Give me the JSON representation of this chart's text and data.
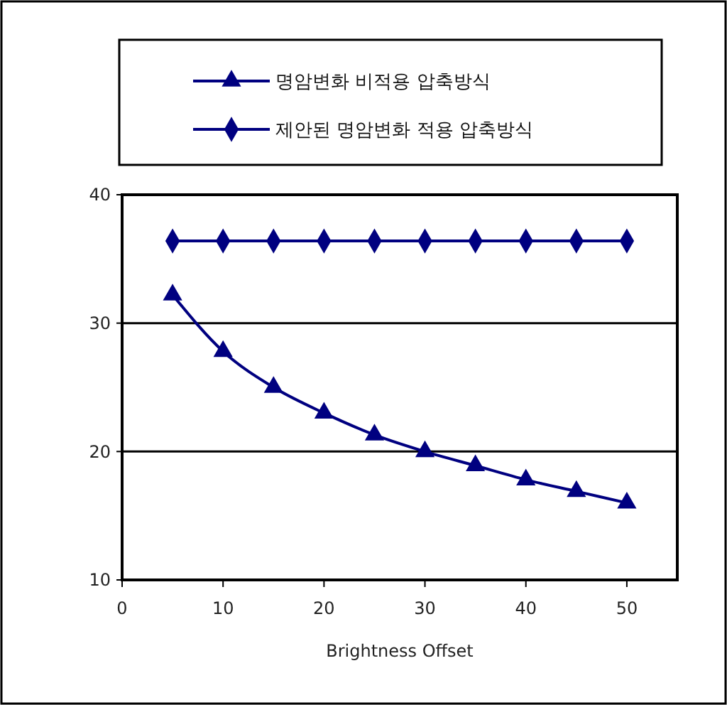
{
  "chart_data": {
    "type": "line",
    "xlabel": "Brightness Offset",
    "x": [
      5,
      10,
      15,
      20,
      25,
      30,
      35,
      40,
      45,
      50
    ],
    "series": [
      {
        "name": "명암변화 비적용 압축방식",
        "color": "#000080",
        "marker": "triangle",
        "values": [
          32.2,
          27.8,
          25.0,
          23.0,
          21.3,
          20.0,
          18.9,
          17.8,
          16.9,
          16.0
        ]
      },
      {
        "name": "제안된 명암변화 적용 압축방식",
        "color": "#000080",
        "marker": "diamond",
        "values": [
          36.4,
          36.4,
          36.4,
          36.4,
          36.4,
          36.4,
          36.4,
          36.4,
          36.4,
          36.4
        ]
      }
    ],
    "xlim": [
      0,
      55
    ],
    "xticks": [
      0,
      10,
      20,
      30,
      40,
      50
    ],
    "ylim": [
      10,
      40
    ],
    "yticks": [
      10,
      20,
      30,
      40
    ],
    "grid": "y",
    "legend": "top",
    "line_style": "solid"
  }
}
